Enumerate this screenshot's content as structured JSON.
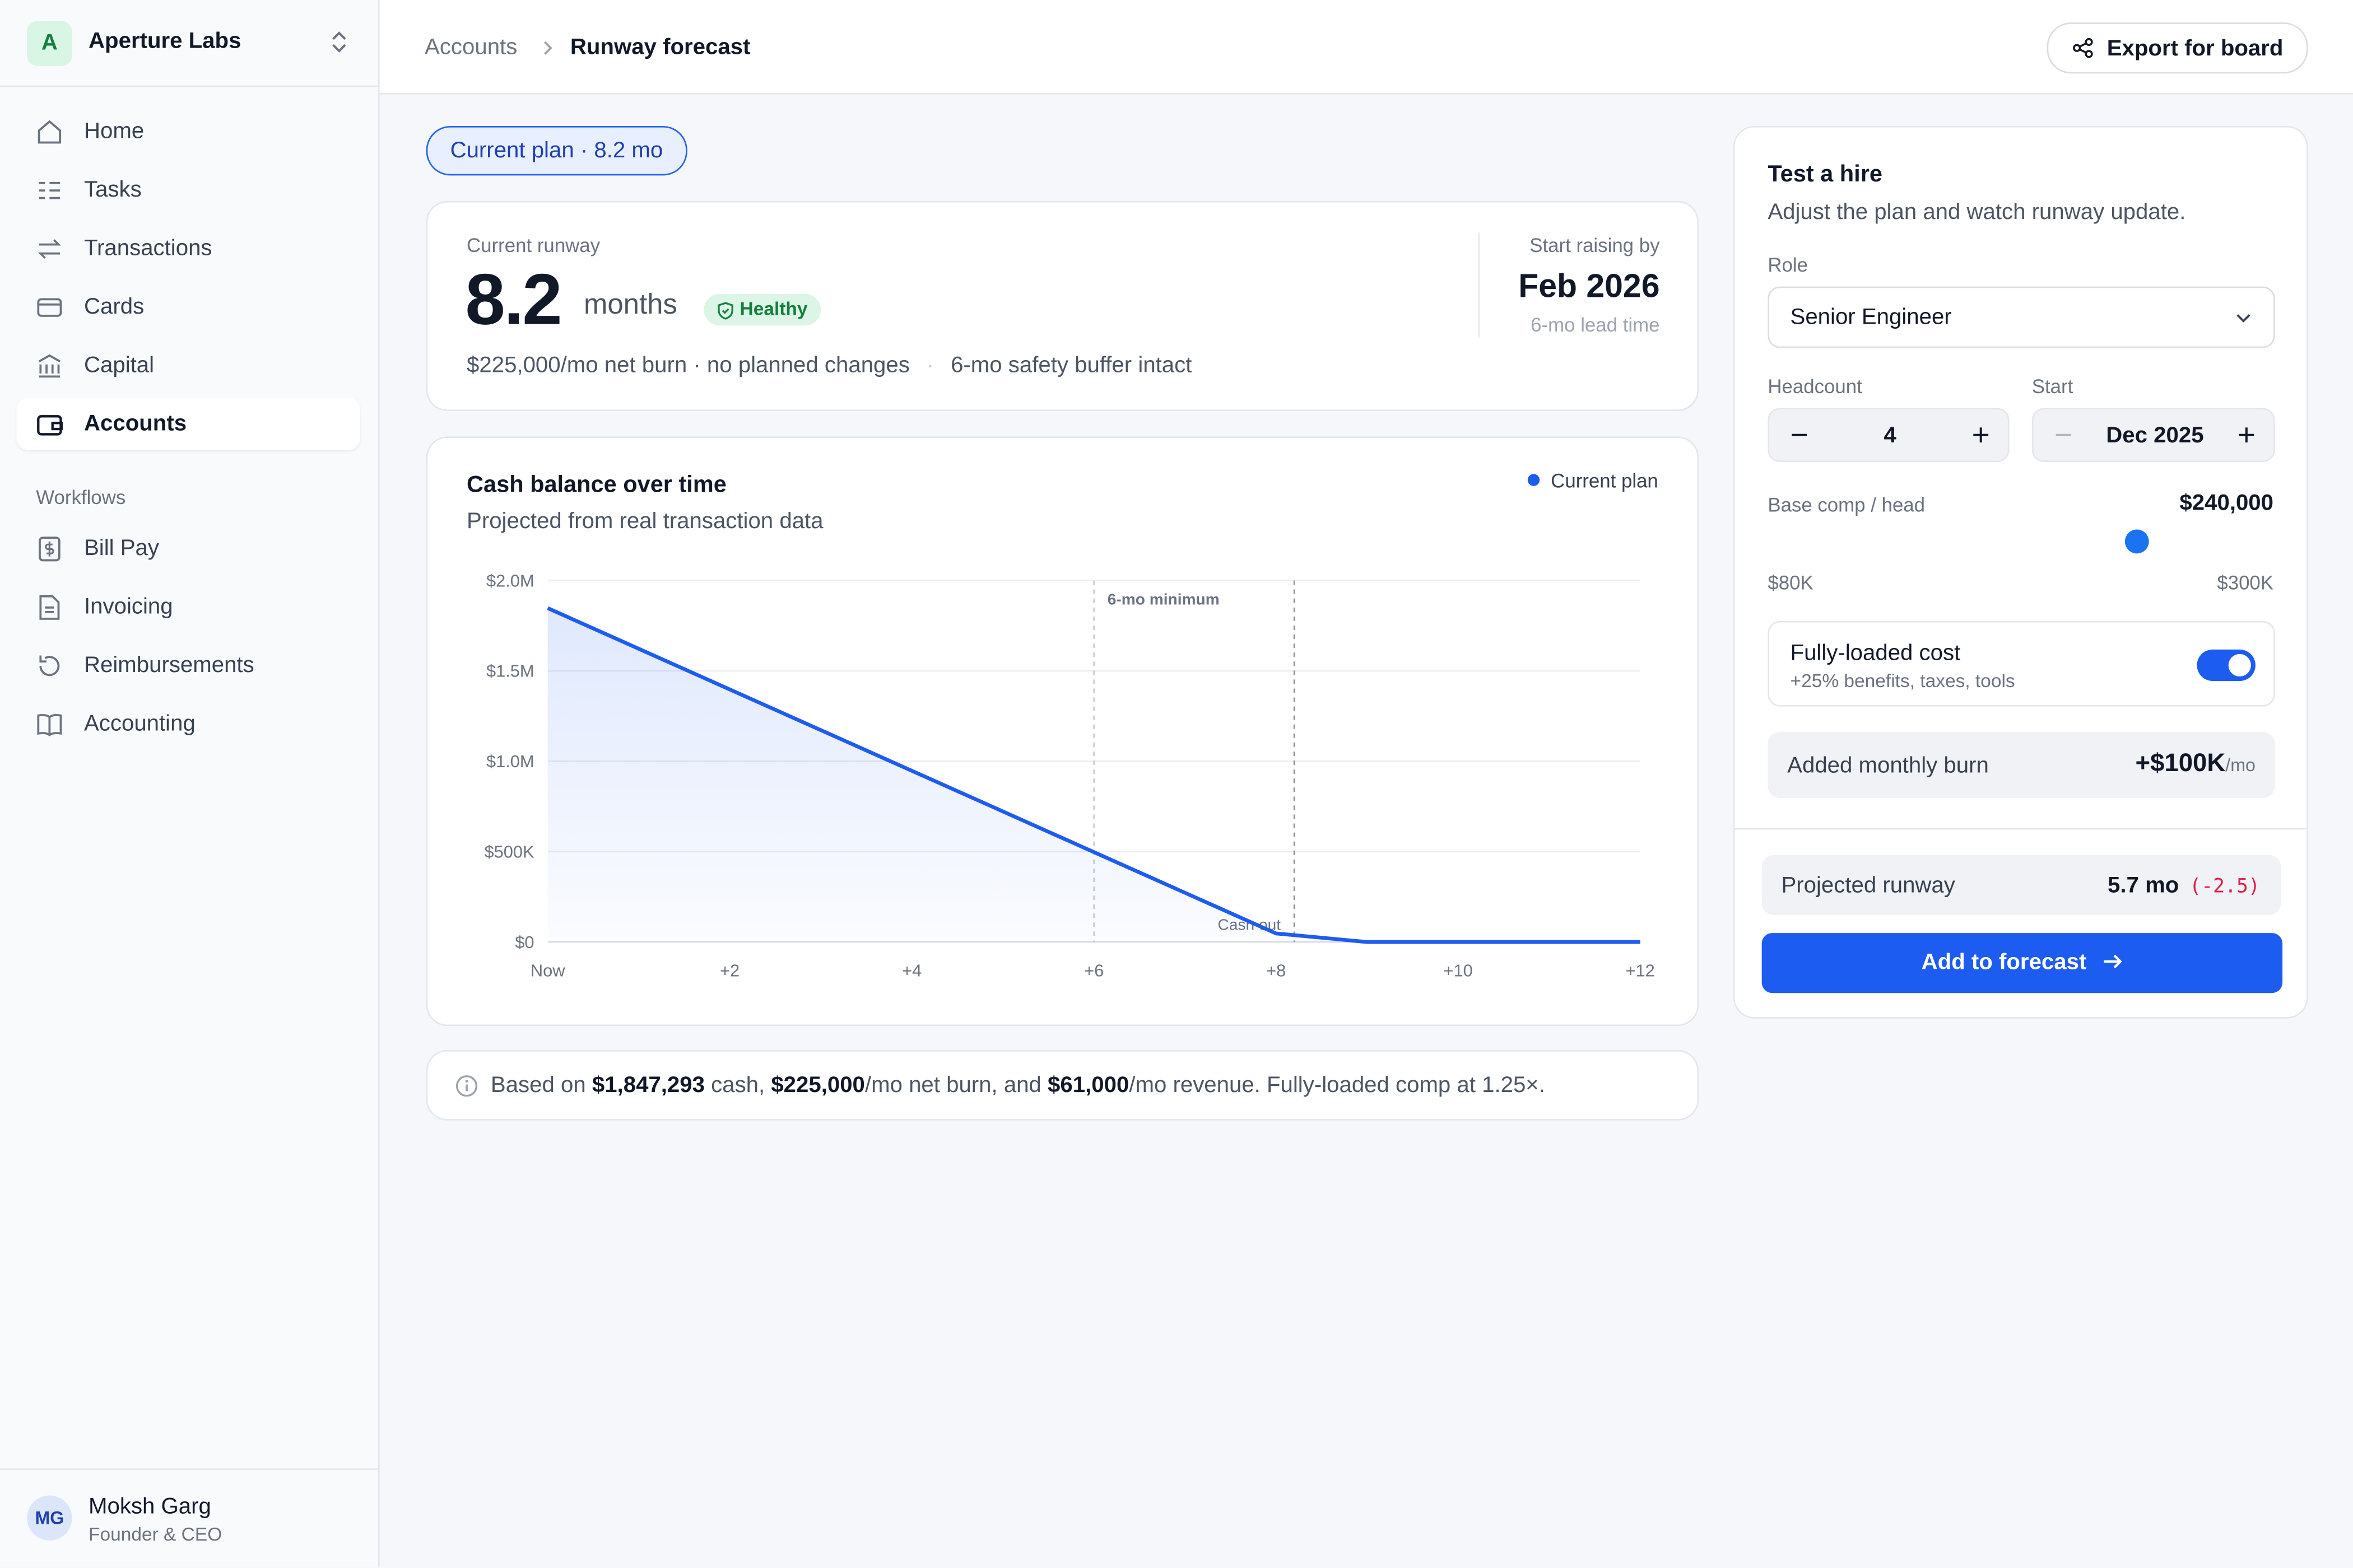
{
  "sidebar": {
    "org_initial": "A",
    "org_name": "Aperture Labs",
    "nav": [
      "Home",
      "Tasks",
      "Transactions",
      "Cards",
      "Capital",
      "Accounts"
    ],
    "section": "Workflows",
    "workflows": [
      "Bill Pay",
      "Invoicing",
      "Reimbursements",
      "Accounting"
    ],
    "user": {
      "initials": "MG",
      "name": "Moksh Garg",
      "role": "Founder & CEO"
    }
  },
  "header": {
    "breadcrumb": [
      "Accounts",
      "Runway forecast"
    ],
    "action": "Export for board"
  },
  "plan_pill": "Current plan · 8.2 mo",
  "runway_card": {
    "label": "Current runway",
    "value": 8.2,
    "unit": "months",
    "status": "Healthy",
    "detail": "$225,000/mo net burn · no planned changes",
    "separator": "·",
    "buffer": "6-mo safety buffer intact",
    "raise_label": "Start raising by",
    "raise_date": "Feb 2026",
    "lead_time": "6-mo lead time"
  },
  "chart_data": {
    "type": "line",
    "title": "Cash balance over time",
    "subtitle": "Projected from real transaction data",
    "x": [
      0,
      1,
      2,
      3,
      4,
      5,
      6,
      7,
      8,
      9,
      10,
      11,
      12
    ],
    "xlim": [
      0,
      12
    ],
    "xticks": [
      {
        "value": 0,
        "label": "Now"
      },
      {
        "value": 2,
        "label": "+2"
      },
      {
        "value": 4,
        "label": "+4"
      },
      {
        "value": 6,
        "label": "+6"
      },
      {
        "value": 8,
        "label": "+8"
      },
      {
        "value": 10,
        "label": "+10"
      },
      {
        "value": 12,
        "label": "+12"
      }
    ],
    "ylim": [
      0,
      2000000
    ],
    "yticks": [
      {
        "value": 0,
        "label": "$0"
      },
      {
        "value": 500000,
        "label": "$500K"
      },
      {
        "value": 1000000,
        "label": "$1.0M"
      },
      {
        "value": 1500000,
        "label": "$1.5M"
      },
      {
        "value": 2000000,
        "label": "$2.0M"
      }
    ],
    "grid": true,
    "legend": "top-right",
    "series": [
      {
        "name": "Current plan",
        "color": "#1d5cf0",
        "values": [
          1847293,
          1622293,
          1397293,
          1172293,
          947293,
          722293,
          497293,
          272293,
          47293,
          0,
          0,
          0,
          0
        ]
      }
    ],
    "annotations": [
      {
        "text": "6-mo minimum",
        "x": 6
      },
      {
        "text": "Cash out",
        "x": 8.2
      }
    ]
  },
  "footnote": [
    "Based on ",
    "$1,847,293",
    " cash, ",
    "$225,000",
    "/mo net burn, and ",
    "$61,000",
    "/mo revenue. Fully-loaded comp at 1.25×."
  ],
  "hire_panel": {
    "title": "Test a hire",
    "subtitle": "Adjust the plan and watch runway update.",
    "role_label": "Role",
    "role": "Senior Engineer",
    "headcount_label": "Headcount",
    "headcount": 4,
    "start_label": "Start",
    "start": "Dec 2025",
    "comp_label": "Base comp / head",
    "comp": {
      "value": 240000,
      "label": "$240,000",
      "min": 80000,
      "min_label": "$80K",
      "max": 300000,
      "max_label": "$300K"
    },
    "loaded_title": "Fully-loaded cost",
    "loaded_note": "+25% benefits, taxes, tools",
    "loaded_on": true,
    "burn_label": "Added monthly burn",
    "burn": "+$100K",
    "burn_unit": "/mo",
    "projected_label": "Projected runway",
    "projected": "5.7 mo",
    "projected_delta": "(-2.5)",
    "cta": "Add to forecast"
  }
}
